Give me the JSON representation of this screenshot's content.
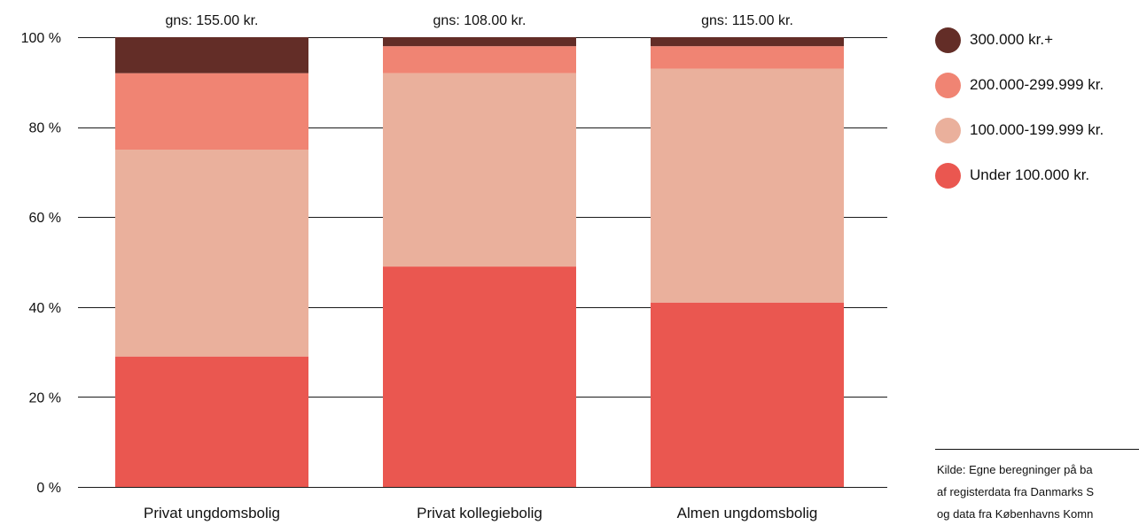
{
  "chart_data": {
    "type": "bar",
    "stacked": true,
    "categories": [
      "Privat ungdomsbolig",
      "Privat kollegiebolig",
      "Almen ungdomsbolig"
    ],
    "series": [
      {
        "name": "Under 100.000 kr.",
        "color": "#EA5750",
        "values": [
          29,
          49,
          41
        ]
      },
      {
        "name": "100.000-199.999 kr.",
        "color": "#EAB09C",
        "values": [
          46,
          43,
          52
        ]
      },
      {
        "name": "200.000-299.999 kr.",
        "color": "#F08473",
        "values": [
          17,
          6,
          5
        ]
      },
      {
        "name": "300.000 kr.+",
        "color": "#632D27",
        "values": [
          8,
          2,
          2
        ]
      }
    ],
    "annotations": [
      "gns: 155.00 kr.",
      "gns: 108.00 kr.",
      "gns: 115.00 kr."
    ],
    "y_ticks": [
      0,
      20,
      40,
      60,
      80,
      100
    ],
    "y_tick_labels": [
      "0 %",
      "20 %",
      "40 %",
      "60 %",
      "80 %",
      "100 %"
    ],
    "ylim": [
      0,
      100
    ],
    "grid": true,
    "legend_position": "right",
    "title": "",
    "xlabel": "",
    "ylabel": ""
  },
  "legend": {
    "items": [
      {
        "label": "300.000 kr.+",
        "color": "#632D27"
      },
      {
        "label": "200.000-299.999 kr.",
        "color": "#F08473"
      },
      {
        "label": "100.000-199.999 kr.",
        "color": "#EAB09C"
      },
      {
        "label": "Under 100.000 kr.",
        "color": "#EA5750"
      }
    ]
  },
  "source": {
    "lines": [
      "Kilde: Egne beregninger på ba",
      "af registerdata fra Danmarks S",
      "og data fra Københavns Komn"
    ]
  }
}
